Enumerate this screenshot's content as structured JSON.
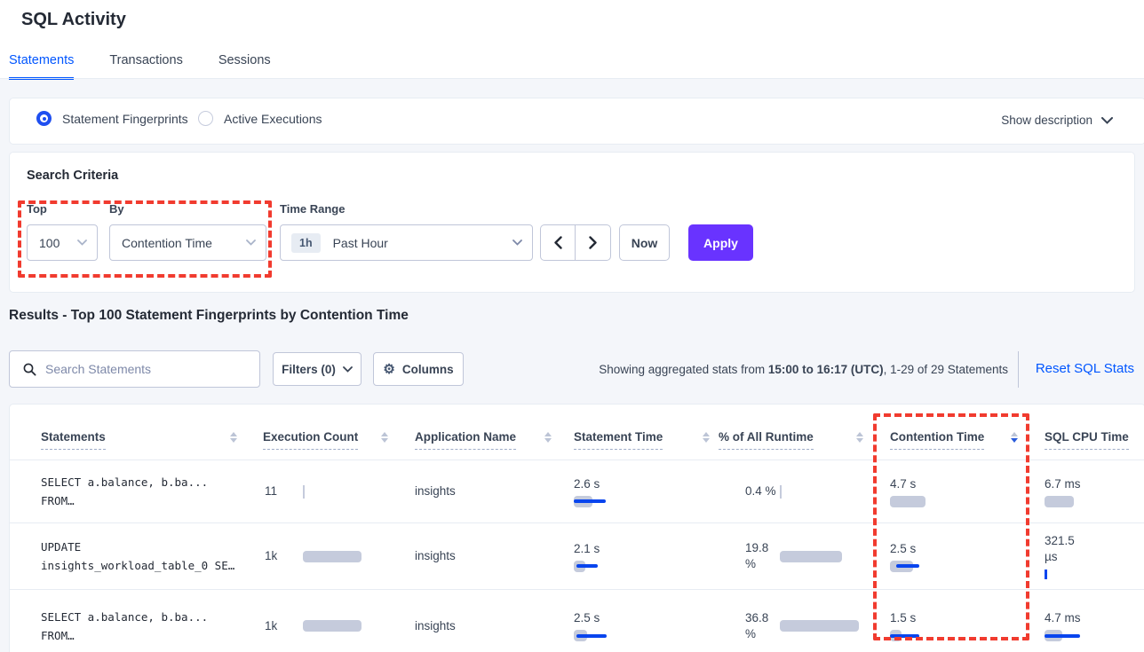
{
  "page": {
    "title": "SQL Activity"
  },
  "tabs": [
    {
      "label": "Statements",
      "active": true
    },
    {
      "label": "Transactions",
      "active": false
    },
    {
      "label": "Sessions",
      "active": false
    }
  ],
  "view_toggle": {
    "options": [
      {
        "label": "Statement Fingerprints",
        "selected": true
      },
      {
        "label": "Active Executions",
        "selected": false
      }
    ],
    "show_description": "Show description"
  },
  "search_criteria": {
    "title": "Search Criteria",
    "top": {
      "label": "Top",
      "value": "100"
    },
    "by": {
      "label": "By",
      "value": "Contention Time"
    },
    "time_range": {
      "label": "Time Range",
      "badge": "1h",
      "value": "Past Hour"
    },
    "now_label": "Now",
    "apply_label": "Apply"
  },
  "results": {
    "title": "Results - Top 100 Statement Fingerprints by Contention Time",
    "search_placeholder": "Search Statements",
    "filters_label": "Filters (0)",
    "columns_label": "Columns",
    "stats_prefix": "Showing aggregated stats from ",
    "stats_bold": "15:00 to 16:17 (UTC)",
    "stats_suffix": ", 1-29 of 29 Statements",
    "reset_label": "Reset SQL Stats"
  },
  "table": {
    "headers": [
      {
        "label": "Statements",
        "sort": "none"
      },
      {
        "label": "Execution Count",
        "sort": "none"
      },
      {
        "label": "Application Name",
        "sort": "none"
      },
      {
        "label": "Statement Time",
        "sort": "none"
      },
      {
        "label": "% of All Runtime",
        "sort": "none"
      },
      {
        "label": "Contention Time",
        "sort": "desc"
      },
      {
        "label": "SQL CPU Time",
        "sort": "hidden"
      }
    ],
    "rows": [
      {
        "statement_lines": [
          "SELECT a.balance, b.ba...",
          "FROM…"
        ],
        "execution_count": {
          "lines": [
            "11"
          ],
          "bar": {
            "sliver": "gray"
          }
        },
        "application_name": "insights",
        "statement_time": {
          "lines": [
            "2.6 s"
          ],
          "bar": {
            "gray": 21,
            "blue": [
              0,
              36
            ]
          }
        },
        "pct_runtime": {
          "lines": [
            "0.4 %"
          ],
          "bar": {
            "sliver": "gray"
          }
        },
        "contention_time": {
          "lines": [
            "4.7 s"
          ],
          "bar": {
            "gray": 40
          }
        },
        "sql_cpu_time": {
          "lines": [
            "6.7 ms"
          ],
          "bar": {
            "gray": 33
          }
        }
      },
      {
        "statement_lines": [
          "UPDATE",
          "insights_workload_table_0 SE…"
        ],
        "execution_count": {
          "lines": [
            "1k"
          ],
          "bar": {
            "gray": 66
          }
        },
        "application_name": "insights",
        "statement_time": {
          "lines": [
            "2.1 s"
          ],
          "bar": {
            "gray": 13,
            "blue": [
              3,
              24
            ]
          }
        },
        "pct_runtime": {
          "lines": [
            "19.8",
            "%"
          ],
          "bar": {
            "gray": 70
          }
        },
        "contention_time": {
          "lines": [
            "2.5 s"
          ],
          "bar": {
            "gray": 26,
            "blue": [
              7,
              26
            ]
          }
        },
        "sql_cpu_time": {
          "lines": [
            "321.5",
            "µs"
          ],
          "bar": {
            "sliver": "blue"
          }
        }
      },
      {
        "statement_lines": [
          "SELECT a.balance, b.ba...",
          "FROM…"
        ],
        "execution_count": {
          "lines": [
            "1k"
          ],
          "bar": {
            "gray": 66
          }
        },
        "application_name": "insights",
        "statement_time": {
          "lines": [
            "2.5 s"
          ],
          "bar": {
            "gray": 15,
            "blue": [
              3,
              34
            ]
          }
        },
        "pct_runtime": {
          "lines": [
            "36.8",
            "%"
          ],
          "bar": {
            "gray": 89
          }
        },
        "contention_time": {
          "lines": [
            "1.5 s"
          ],
          "bar": {
            "gray": 13,
            "blue": [
              0,
              33
            ]
          }
        },
        "sql_cpu_time": {
          "lines": [
            "4.7 ms"
          ],
          "bar": {
            "gray": 20,
            "blue": [
              0,
              40
            ]
          }
        }
      }
    ]
  },
  "colors": {
    "accent_blue": "#0156FF",
    "apply_purple": "#6933FF",
    "bar_gray": "#C5CBDC",
    "bar_blue": "#0945EE",
    "highlight_red": "#F13B2F"
  }
}
